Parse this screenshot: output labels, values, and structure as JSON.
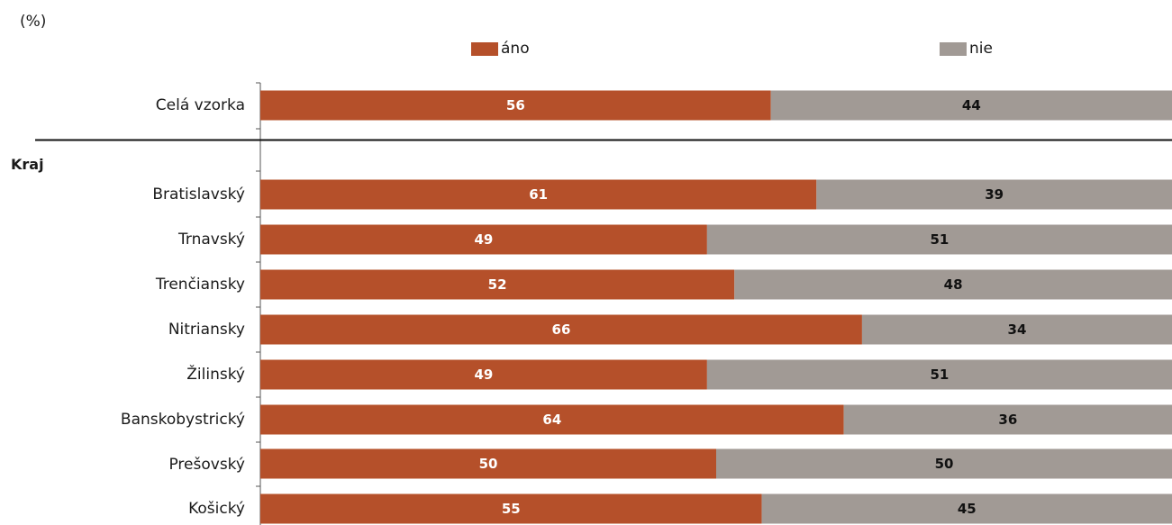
{
  "chart_data": {
    "type": "bar",
    "orientation": "horizontal",
    "stacked": true,
    "unit_label": "(%)",
    "group_label": "Kraj",
    "categories": [
      "Celá vzorka",
      "Bratislavský",
      "Trnavský",
      "Trenčiansky",
      "Nitriansky",
      "Žilinský",
      "Banskobystrický",
      "Prešovský",
      "Košický"
    ],
    "series": [
      {
        "name": "áno",
        "color": "#b5502a",
        "values": [
          56,
          61,
          49,
          52,
          66,
          49,
          64,
          50,
          55
        ]
      },
      {
        "name": "nie",
        "color": "#a19a95",
        "values": [
          44,
          39,
          51,
          48,
          34,
          51,
          36,
          50,
          45
        ]
      }
    ],
    "xlim": [
      0,
      100
    ],
    "legend": "top",
    "grid": false
  }
}
